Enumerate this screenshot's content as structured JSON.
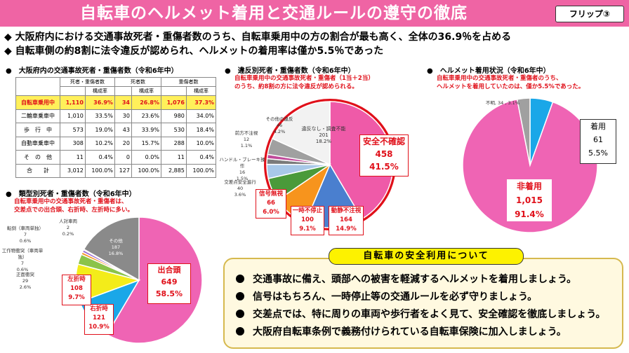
{
  "header": {
    "title": "自転車のヘルメット着用と交通ルールの遵守の徹底",
    "flip_label": "フリップ③"
  },
  "headlines": [
    "◆ 大阪府内における交通事故死者・重傷者数のうち、自転車乗用中の方の割合が最も高く、全体の36.9％を占める",
    "◆ 自転車側の約8割に法令違反が認められ、ヘルメットの着用率は僅か5.5％であった"
  ],
  "table_section": {
    "title": "●　大阪府内の交通事故死者・重傷者数（令和6年中）",
    "header_row1": [
      "",
      "死者・重傷者数",
      "死者数",
      "重傷者数"
    ],
    "header_row2": [
      "構成率",
      "構成率",
      "構成率"
    ],
    "rows": [
      {
        "label": "自転車乗用中",
        "v1": "1,110",
        "r1": "36.9%",
        "v2": "34",
        "r2": "26.8%",
        "v3": "1,076",
        "r3": "37.3%"
      },
      {
        "label": "二輪車乗車中",
        "v1": "1,010",
        "r1": "33.5%",
        "v2": "30",
        "r2": "23.6%",
        "v3": "980",
        "r3": "34.0%"
      },
      {
        "label": "歩　行　中",
        "v1": "573",
        "r1": "19.0%",
        "v2": "43",
        "r2": "33.9%",
        "v3": "530",
        "r3": "18.4%"
      },
      {
        "label": "自動車乗車中",
        "v1": "308",
        "r1": "10.2%",
        "v2": "20",
        "r2": "15.7%",
        "v3": "288",
        "r3": "10.0%"
      },
      {
        "label": "そ　の　他",
        "v1": "11",
        "r1": "0.4%",
        "v2": "0",
        "r2": "0.0%",
        "v3": "11",
        "r3": "0.4%"
      },
      {
        "label": "合　　計",
        "v1": "3,012",
        "r1": "100.0%",
        "v2": "127",
        "r2": "100.0%",
        "v3": "2,885",
        "r3": "100.0%"
      }
    ]
  },
  "violation_section": {
    "title": "●　違反別死者・重傷者数（令和6年中）",
    "note1": "自転車乗用中の交通事故死者・重傷者（1当＋2当）",
    "note2": "のうち、約8割の方に法令違反が認められる。",
    "labels": {
      "safety": [
        "安全不確認",
        "458",
        "41.5%"
      ],
      "static": [
        "動静不注視",
        "164",
        "14.9%"
      ],
      "stop": [
        "一時不停止",
        "100",
        "9.1%"
      ],
      "signal": [
        "信号無視",
        "66",
        "6.0%"
      ],
      "crossing": [
        "交差点安全進行",
        "40",
        "3.6%"
      ],
      "handle": [
        "ハンドル・ブレーキ操作",
        "16",
        "1.5%"
      ],
      "front": [
        "前方不注視",
        "12",
        "1.1%"
      ],
      "other": [
        "その他の違反",
        "46",
        "4.2%"
      ],
      "none": [
        "違反なし・調査不能",
        "201",
        "18.2%"
      ]
    }
  },
  "helmet_section": {
    "title": "●　ヘルメット着用状況（令和6年中）",
    "note1": "自転車乗用中の交通事故死者・重傷者のうち、",
    "note2": "ヘルメットを着用していたのは、僅か5.5%であった。",
    "unknown": "不明, 34 , 3.1%",
    "worn": [
      "着用",
      "61",
      "5.5%"
    ],
    "notworn": [
      "非着用",
      "1,015",
      "91.4%"
    ]
  },
  "type_section": {
    "title": "●　類型別死者・重傷者数（令和6年中）",
    "note1": "自転車乗用中の交通事故死者・重傷者は、",
    "note2": "交差点での出合頭、右折時、左折時に多い。",
    "head_on": [
      "出合頭",
      "649",
      "58.5%"
    ],
    "right_turn": [
      "右折時",
      "121",
      "10.9%"
    ],
    "left_turn": [
      "左折時",
      "108",
      "9.7%"
    ],
    "front_collision": [
      "正面衝突",
      "29",
      "2.6%"
    ],
    "object": [
      "工作物衝突（車両単独）",
      "7",
      "0.6%"
    ],
    "fall": [
      "転倒（車両単独）",
      "7",
      "0.6%"
    ],
    "human_vehicle": [
      "人対車両",
      "2",
      "0.2%"
    ],
    "other": [
      "その他",
      "187",
      "16.8%"
    ]
  },
  "safety": {
    "title": "自転車の安全利用について",
    "items": [
      "交通事故に備え、頭部への被害を軽減するヘルメットを着用しましょう。",
      "信号はもちろん、一時停止等の交通ルールを必ず守りましょう。",
      "交差点では、特に周りの車両や歩行者をよく見て、安全確認を徹底しましょう。",
      "大阪府自転車条例で義務付けられている自転車保険に加入しましょう。"
    ]
  },
  "chart_data": [
    {
      "type": "pie",
      "title": "違反別死者・重傷者数（令和6年中）",
      "categories": [
        "安全不確認",
        "動静不注視",
        "一時不停止",
        "信号無視",
        "交差点安全進行",
        "ハンドル・ブレーキ操作",
        "前方不注視",
        "その他の違反",
        "違反なし・調査不能"
      ],
      "values": [
        458,
        164,
        100,
        66,
        40,
        16,
        12,
        46,
        201
      ],
      "colors": [
        "#ef5aa8",
        "#4a7fcf",
        "#f7941d",
        "#4a9a3a",
        "#a8c8e8",
        "#7a7a7a",
        "#c04a9a",
        "#a0a0a0",
        "#f2f2f2"
      ]
    },
    {
      "type": "pie",
      "title": "ヘルメット着用状況（令和6年中）",
      "categories": [
        "着用",
        "非着用",
        "不明"
      ],
      "values": [
        61,
        1015,
        34
      ],
      "colors": [
        "#1aa7e8",
        "#ef64b4",
        "#a0a0a0"
      ]
    },
    {
      "type": "pie",
      "title": "類型別死者・重傷者数（令和6年中）",
      "categories": [
        "出合頭",
        "右折時",
        "左折時",
        "正面衝突",
        "工作物衝突（車両単独）",
        "転倒（車両単独）",
        "人対車両",
        "その他"
      ],
      "values": [
        649,
        121,
        108,
        29,
        7,
        7,
        2,
        187
      ],
      "colors": [
        "#ef64b4",
        "#1aa7e8",
        "#f3ec1a",
        "#8bc34a",
        "#f7941d",
        "#9c6ad0",
        "#444444",
        "#8a8a8a"
      ]
    }
  ]
}
